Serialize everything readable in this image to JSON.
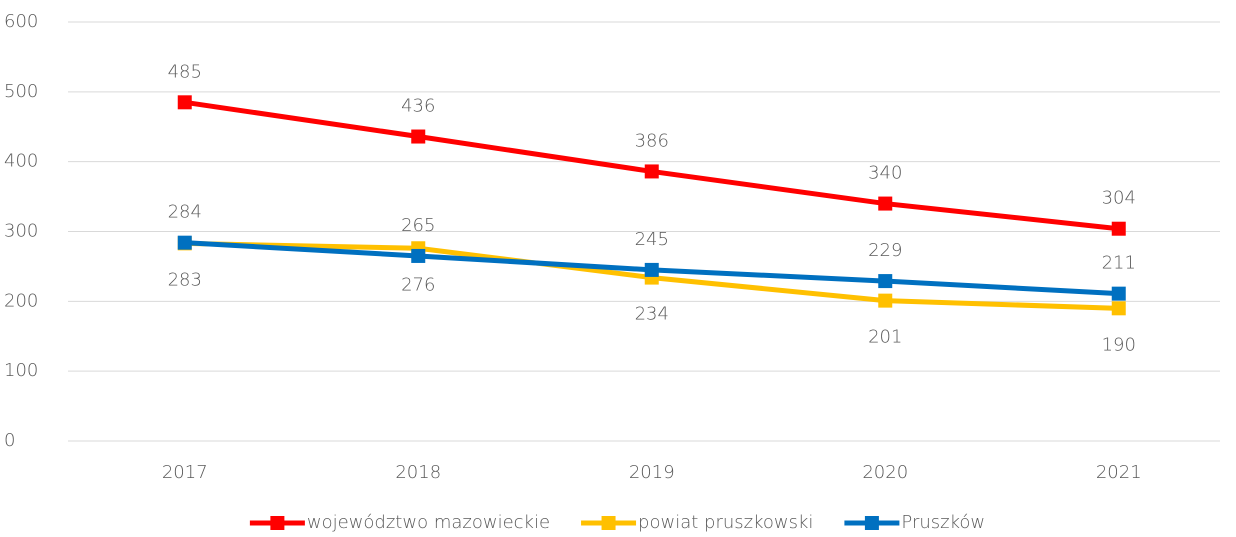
{
  "chart_data": {
    "type": "line",
    "categories": [
      "2017",
      "2018",
      "2019",
      "2020",
      "2021"
    ],
    "series": [
      {
        "name": "województwo mazowieckie",
        "color": "#ff0000",
        "values": [
          485,
          436,
          386,
          340,
          304
        ]
      },
      {
        "name": "powiat pruszkowski",
        "color": "#ffc000",
        "values": [
          283,
          276,
          234,
          201,
          190
        ]
      },
      {
        "name": "Pruszków",
        "color": "#0070c0",
        "values": [
          284,
          265,
          245,
          229,
          211
        ]
      }
    ],
    "ylim": [
      0,
      600
    ],
    "yticks": [
      0,
      100,
      200,
      300,
      400,
      500,
      600
    ],
    "grid": true,
    "legend": "bottom"
  }
}
